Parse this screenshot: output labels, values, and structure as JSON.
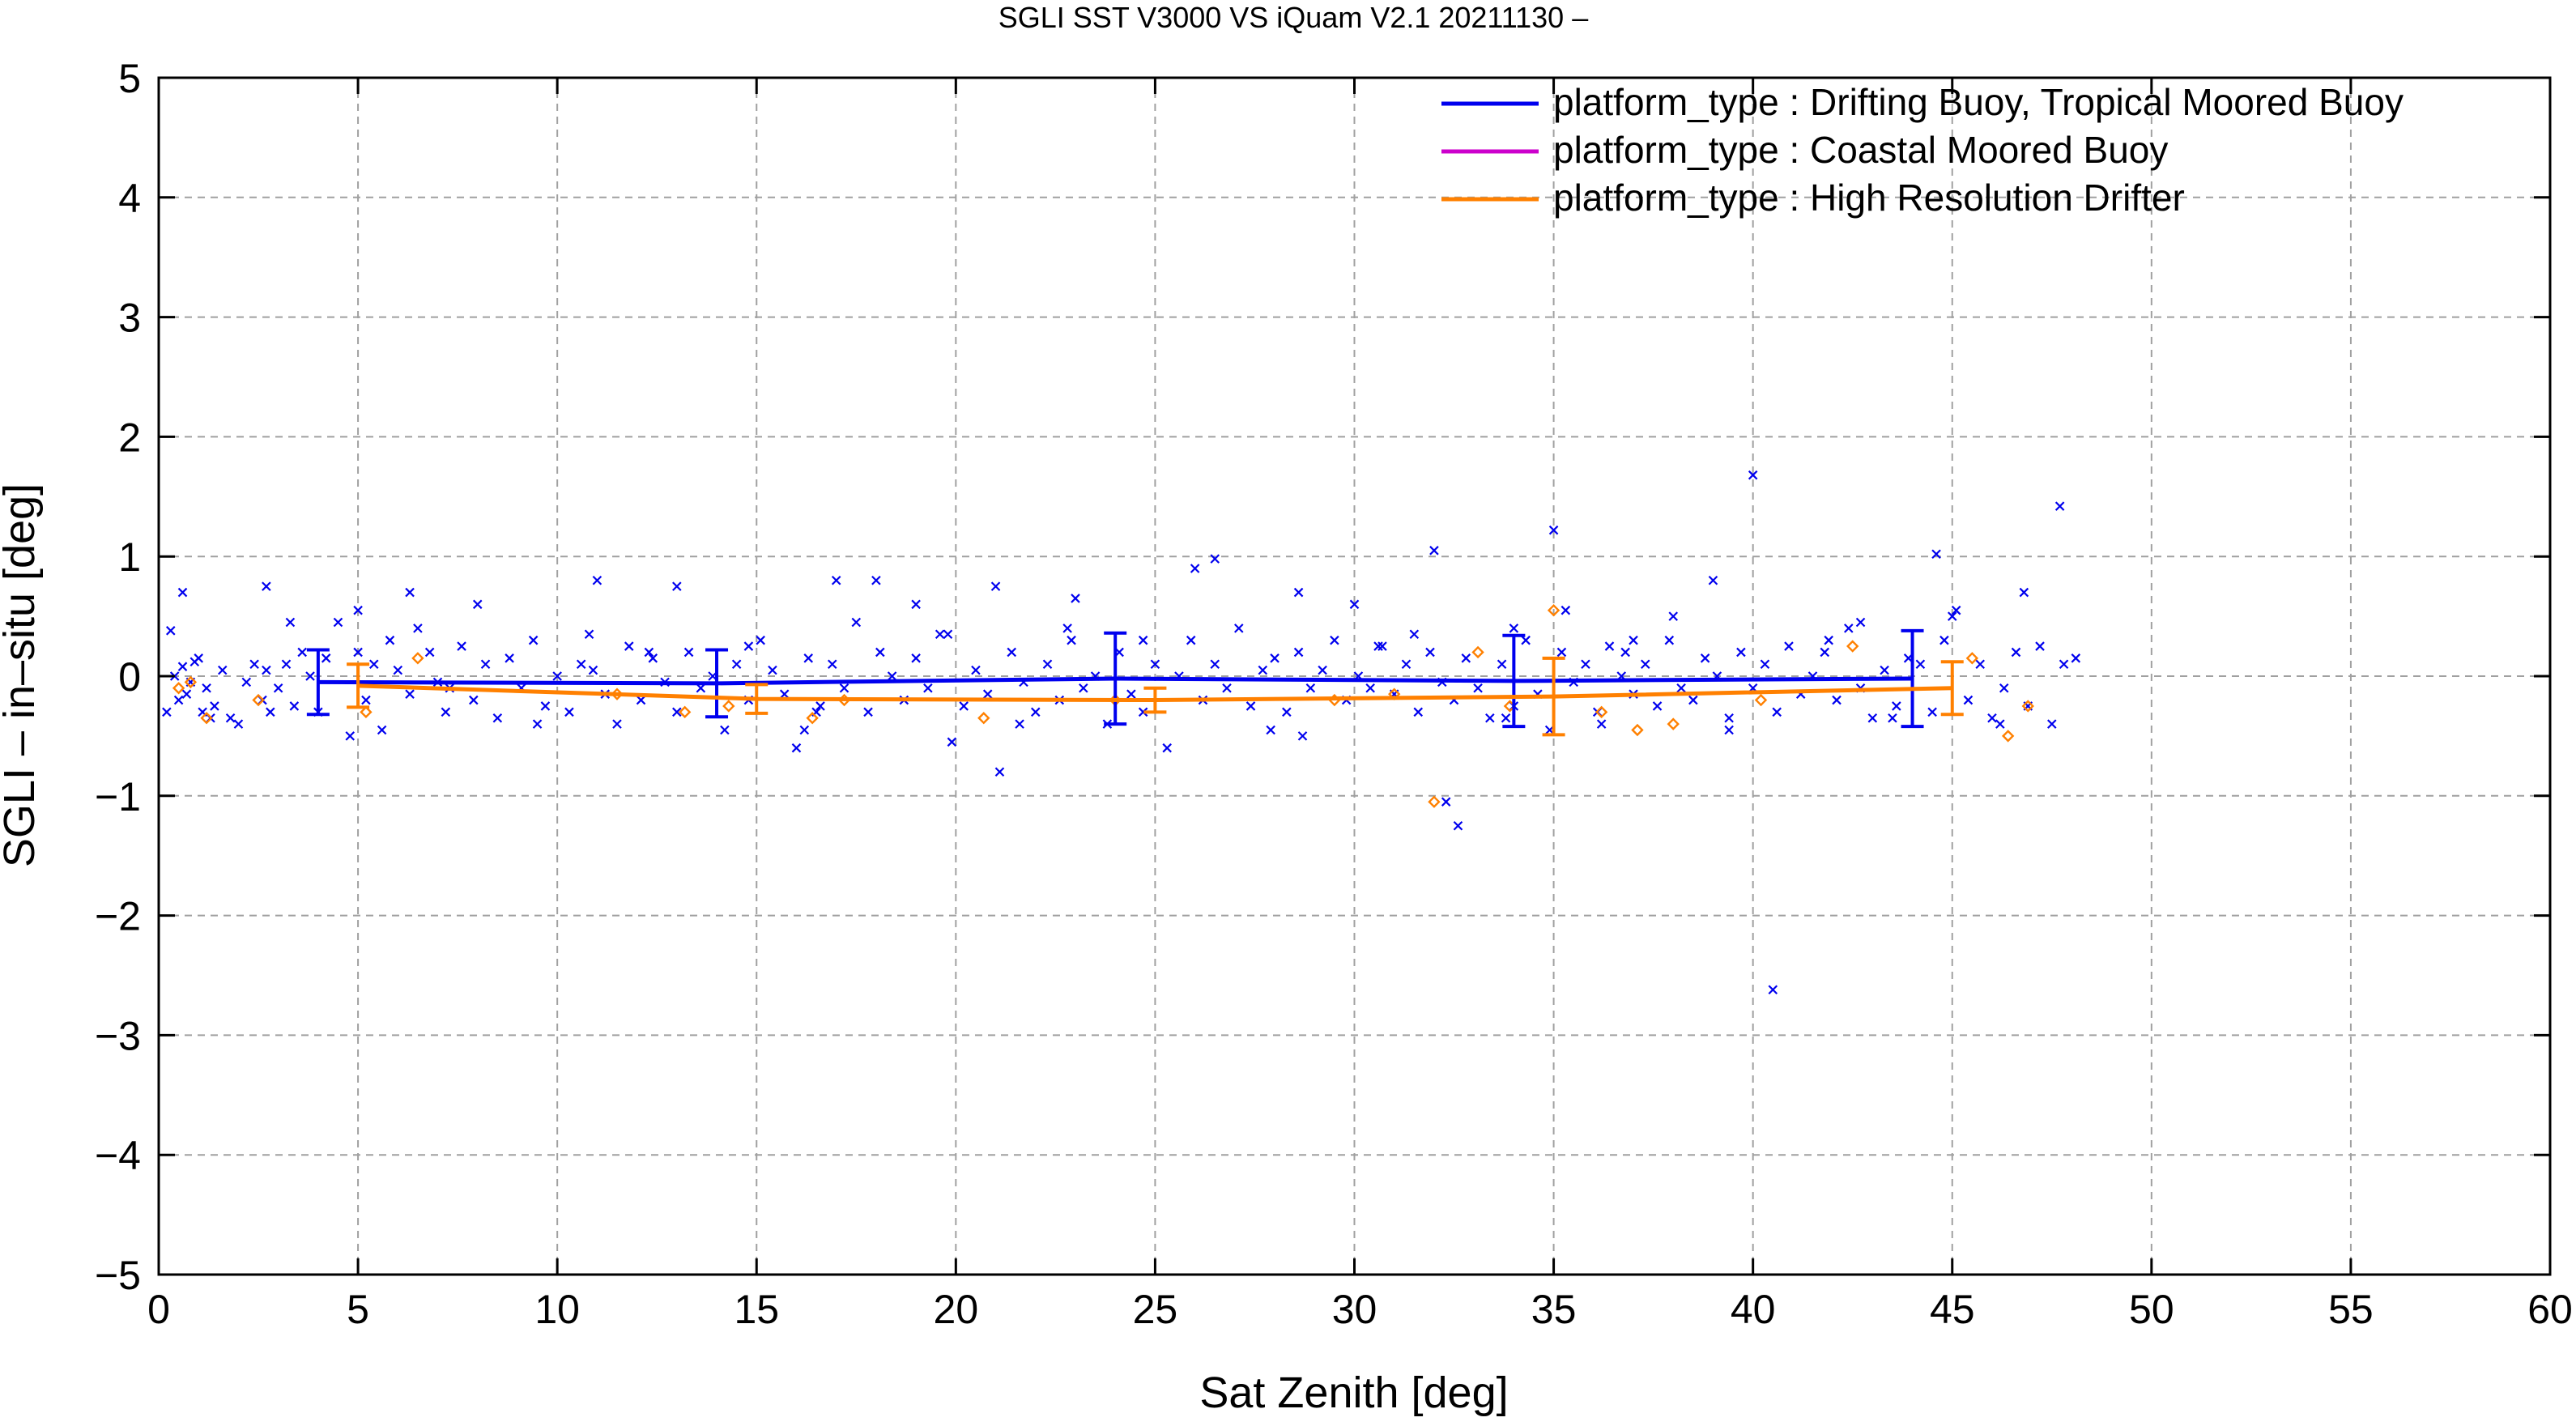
{
  "chart_data": {
    "type": "scatter",
    "title": "SGLI SST V3000 VS iQuam V2.1 20211130 –",
    "xlabel": "Sat Zenith [deg]",
    "ylabel": "SGLI – in–situ [deg]",
    "xlim": [
      0,
      60
    ],
    "ylim": [
      -5,
      5
    ],
    "x_ticks": [
      0,
      5,
      10,
      15,
      20,
      25,
      30,
      35,
      40,
      45,
      50,
      55,
      60
    ],
    "y_ticks": [
      -5,
      -4,
      -3,
      -2,
      -1,
      0,
      1,
      2,
      3,
      4,
      5
    ],
    "x_tick_labels": [
      "0",
      "5",
      "10",
      "15",
      "20",
      "25",
      "30",
      "35",
      "40",
      "45",
      "50",
      "55",
      "60"
    ],
    "y_tick_labels": [
      "−5",
      "−4",
      "−3",
      "−2",
      "−1",
      "0",
      "1",
      "2",
      "3",
      "4",
      "5"
    ],
    "grid": true,
    "legend_position": "top-right",
    "colors": {
      "drifting": "#0000ee",
      "coastal": "#cc00cc",
      "hrd": "#ff8000",
      "grid": "#a0a0a0"
    },
    "series": [
      {
        "name": "platform_type : Drifting Buoy, Tropical Moored Buoy",
        "color": "#0000ee",
        "marker": "x",
        "mean_line": {
          "x": [
            4,
            14,
            24,
            34,
            44
          ],
          "y": [
            -0.05,
            -0.06,
            -0.02,
            -0.04,
            -0.02
          ],
          "err": [
            0.27,
            0.28,
            0.38,
            0.38,
            0.4
          ]
        },
        "points": {
          "x": [
            0.2,
            0.3,
            0.4,
            0.5,
            0.6,
            0.7,
            0.8,
            0.9,
            1.0,
            1.1,
            1.2,
            1.3,
            1.4,
            1.6,
            1.8,
            2.0,
            2.2,
            2.4,
            2.6,
            2.7,
            2.8,
            3.0,
            3.2,
            3.4,
            3.6,
            3.8,
            4.0,
            4.2,
            4.5,
            4.8,
            5.0,
            5.2,
            5.4,
            5.6,
            5.8,
            6.0,
            6.3,
            6.5,
            6.8,
            7.0,
            7.3,
            7.6,
            7.9,
            8.2,
            8.5,
            8.8,
            9.1,
            9.4,
            9.7,
            10.0,
            10.3,
            10.6,
            10.9,
            11.2,
            11.5,
            11.8,
            12.1,
            12.4,
            12.7,
            13.0,
            13.3,
            13.6,
            13.9,
            14.2,
            14.5,
            14.8,
            15.1,
            15.4,
            15.7,
            16.0,
            16.3,
            16.6,
            16.9,
            17.2,
            17.5,
            17.8,
            18.1,
            18.4,
            18.7,
            19.0,
            19.3,
            19.6,
            19.9,
            20.2,
            20.5,
            20.8,
            21.1,
            21.4,
            21.7,
            22.0,
            22.3,
            22.6,
            22.9,
            23.2,
            23.5,
            23.8,
            24.1,
            24.4,
            24.7,
            25.0,
            25.3,
            25.6,
            25.9,
            26.2,
            26.5,
            26.8,
            27.1,
            27.4,
            27.7,
            28.0,
            28.3,
            28.6,
            28.9,
            29.2,
            29.5,
            29.8,
            30.1,
            30.4,
            30.7,
            31.0,
            31.3,
            31.6,
            31.9,
            32.2,
            32.5,
            32.8,
            33.1,
            33.4,
            33.7,
            34.0,
            34.3,
            34.6,
            34.9,
            35.2,
            35.5,
            35.8,
            36.1,
            36.4,
            36.7,
            37.0,
            37.3,
            37.6,
            37.9,
            38.2,
            38.5,
            38.8,
            39.1,
            39.4,
            39.7,
            40.0,
            40.3,
            40.6,
            40.9,
            41.2,
            41.5,
            41.8,
            42.1,
            42.4,
            42.7,
            43.0,
            43.3,
            43.6,
            43.9,
            44.2,
            44.5,
            44.8,
            45.1,
            45.4,
            45.7,
            46.0,
            46.3,
            46.6,
            46.9,
            47.2,
            47.5,
            47.8,
            48.1,
            0.6,
            2.7,
            5.0,
            6.3,
            8.0,
            11.0,
            13.0,
            17.0,
            18.0,
            19.0,
            21.0,
            23.0,
            26.0,
            26.5,
            28.6,
            30.0,
            32.0,
            32.3,
            32.6,
            34.0,
            35.0,
            35.3,
            37.0,
            38.0,
            39.0,
            40.0,
            40.5,
            44.6,
            45.0,
            46.8,
            47.7,
            7.2,
            9.5,
            12.3,
            14.8,
            16.5,
            19.8,
            21.6,
            24.7,
            27.9,
            30.6,
            33.8,
            36.8,
            39.4,
            41.9,
            43.5,
            46.2,
            3.3,
            10.8,
            16.2,
            22.8,
            28.7,
            31.5,
            36.2,
            42.7
          ],
          "y": [
            -0.3,
            0.38,
            0.0,
            -0.2,
            0.08,
            -0.15,
            -0.05,
            0.12,
            0.15,
            -0.3,
            -0.1,
            -0.35,
            -0.25,
            0.05,
            -0.35,
            -0.4,
            -0.05,
            0.1,
            -0.2,
            0.05,
            -0.3,
            -0.1,
            0.1,
            -0.25,
            0.2,
            0.0,
            -0.3,
            0.15,
            0.45,
            -0.5,
            0.2,
            -0.2,
            0.1,
            -0.45,
            0.3,
            0.05,
            -0.15,
            0.4,
            0.2,
            -0.05,
            -0.1,
            0.25,
            -0.2,
            0.1,
            -0.35,
            0.15,
            -0.1,
            0.3,
            -0.25,
            0.0,
            -0.3,
            0.1,
            0.05,
            -0.15,
            -0.4,
            0.25,
            -0.2,
            0.15,
            -0.05,
            -0.3,
            0.2,
            -0.1,
            0.0,
            -0.45,
            0.1,
            -0.2,
            0.3,
            0.05,
            -0.15,
            -0.6,
            0.15,
            -0.25,
            0.1,
            -0.1,
            0.45,
            -0.3,
            0.2,
            0.0,
            -0.2,
            0.15,
            -0.1,
            0.35,
            -0.55,
            -0.25,
            0.05,
            -0.15,
            -0.8,
            0.2,
            -0.05,
            -0.3,
            0.1,
            -0.2,
            0.3,
            -0.1,
            0.0,
            -0.4,
            0.2,
            -0.15,
            -0.3,
            0.1,
            -0.6,
            0.0,
            0.3,
            -0.2,
            0.1,
            -0.1,
            0.4,
            -0.25,
            0.05,
            0.15,
            -0.3,
            0.2,
            -0.1,
            0.05,
            0.3,
            -0.2,
            0.0,
            -0.1,
            0.25,
            -0.15,
            0.1,
            -0.3,
            0.2,
            -0.05,
            -0.2,
            0.15,
            -0.1,
            -0.35,
            0.1,
            -0.25,
            0.3,
            -0.15,
            -0.45,
            0.2,
            -0.05,
            0.1,
            -0.3,
            0.25,
            0.0,
            -0.15,
            0.1,
            -0.25,
            0.3,
            -0.1,
            -0.2,
            0.15,
            0.0,
            -0.35,
            0.2,
            -0.1,
            0.1,
            -0.3,
            0.25,
            -0.15,
            0.0,
            0.2,
            -0.2,
            0.4,
            -0.1,
            -0.35,
            0.05,
            -0.25,
            0.15,
            0.1,
            -0.3,
            0.3,
            0.55,
            -0.2,
            0.1,
            -0.35,
            -0.1,
            0.2,
            -0.25,
            0.25,
            -0.4,
            0.1,
            0.15,
            0.7,
            0.75,
            0.55,
            0.7,
            0.6,
            0.8,
            0.75,
            0.8,
            0.8,
            0.6,
            0.75,
            0.65,
            0.9,
            0.98,
            0.7,
            0.6,
            1.05,
            -1.05,
            -1.25,
            0.4,
            1.22,
            0.55,
            0.3,
            0.5,
            0.8,
            1.68,
            -2.62,
            1.02,
            0.5,
            0.7,
            1.42,
            -0.3,
            -0.4,
            0.2,
            0.25,
            -0.3,
            0.35,
            -0.4,
            0.3,
            -0.45,
            0.25,
            -0.35,
            0.2,
            -0.45,
            0.3,
            -0.35,
            -0.4,
            0.45,
            0.35,
            -0.45,
            0.4,
            -0.5,
            0.35,
            -0.4,
            0.45
          ]
        }
      },
      {
        "name": "platform_type : Coastal Moored Buoy",
        "color": "#cc00cc",
        "marker": "diamond",
        "points": {
          "x": [],
          "y": []
        }
      },
      {
        "name": "platform_type : High Resolution Drifter",
        "color": "#ff8000",
        "marker": "diamond",
        "mean_line": {
          "x": [
            5,
            15,
            25,
            35,
            45
          ],
          "y": [
            -0.08,
            -0.19,
            -0.2,
            -0.17,
            -0.1
          ],
          "err": [
            0.18,
            0.12,
            0.1,
            0.32,
            0.22
          ]
        },
        "points": {
          "x": [
            0.5,
            0.8,
            1.2,
            2.5,
            5.2,
            6.5,
            11.5,
            13.2,
            14.3,
            16.4,
            17.2,
            20.7,
            24.0,
            29.5,
            31.0,
            32.0,
            33.1,
            33.9,
            35.0,
            36.2,
            37.1,
            38.0,
            40.2,
            42.5,
            45.5,
            46.4,
            46.9
          ],
          "y": [
            -0.1,
            -0.05,
            -0.35,
            -0.2,
            -0.3,
            0.15,
            -0.15,
            -0.3,
            -0.25,
            -0.35,
            -0.2,
            -0.35,
            -0.2,
            -0.2,
            -0.15,
            -1.05,
            0.2,
            -0.25,
            0.55,
            -0.3,
            -0.45,
            -0.4,
            -0.2,
            0.25,
            0.15,
            -0.5,
            -0.25
          ]
        }
      }
    ]
  }
}
